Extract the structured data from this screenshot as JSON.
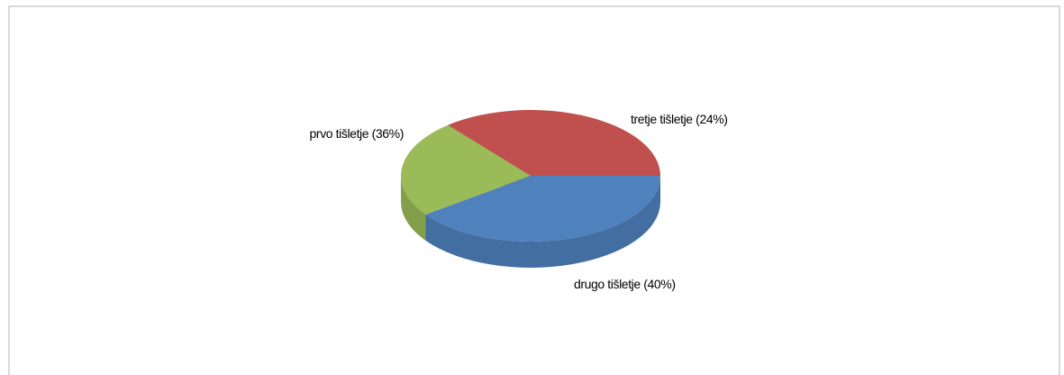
{
  "chart_data": {
    "type": "pie",
    "title": "",
    "categories": [
      "drugo tišletje",
      "tretje tišletje",
      "prvo tišletje"
    ],
    "values": [
      40,
      24,
      36
    ],
    "labels": [
      "drugo tišletje (40%)",
      "tretje tišletje (24%)",
      "prvo tišletje (36%)"
    ],
    "colors": [
      "#4f81bd",
      "#9bbb59",
      "#c0504d"
    ],
    "style": "3d",
    "legend": "none"
  }
}
